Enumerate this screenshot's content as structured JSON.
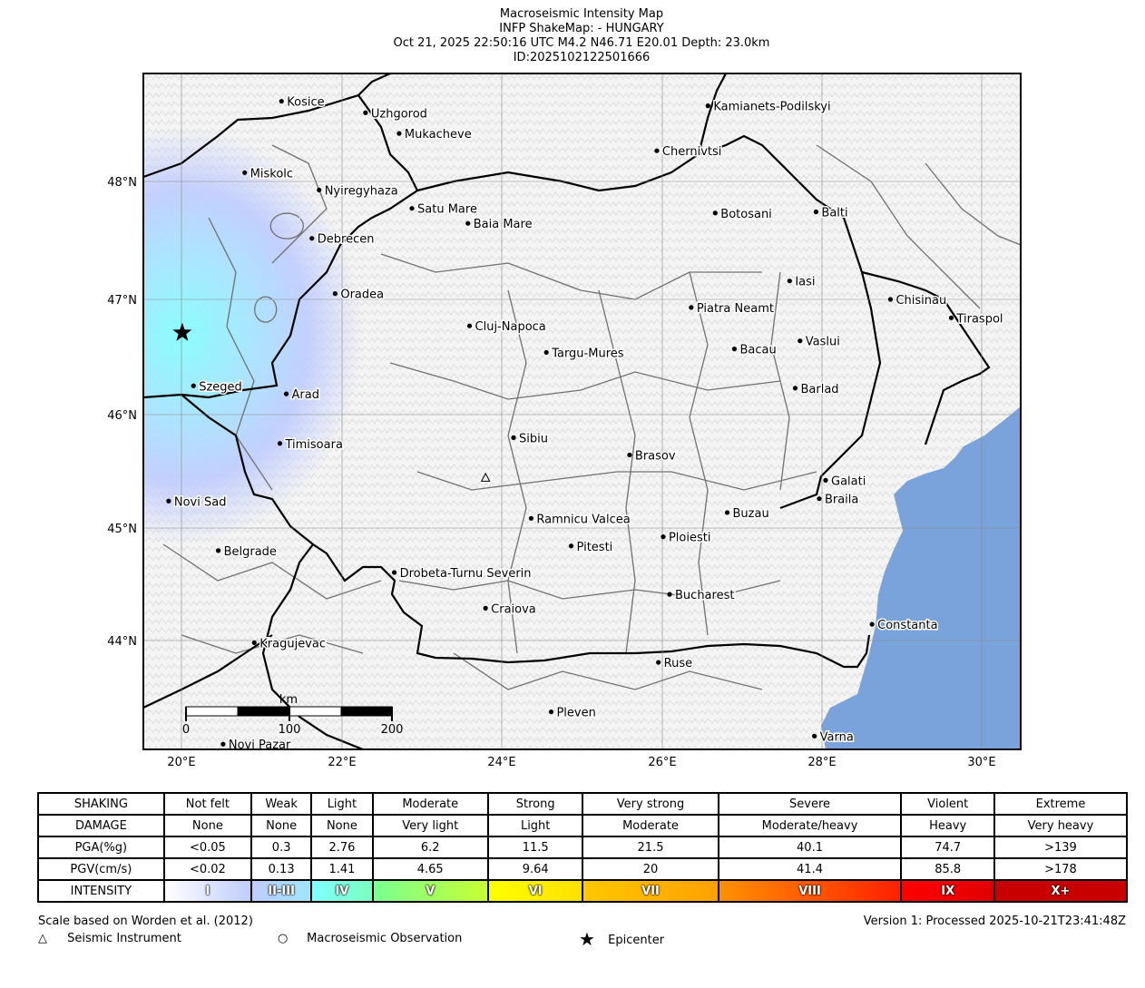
{
  "title": {
    "line1": "Macroseismic Intensity Map",
    "line2": "INFP ShakeMap: - HUNGARY",
    "line3": "Oct 21, 2025 22:50:16 UTC M4.2 N46.71 E20.01 Depth: 23.0km",
    "line4": "ID:2025102122501666"
  },
  "map": {
    "lon_ticks": [
      "20°E",
      "22°E",
      "24°E",
      "26°E",
      "28°E",
      "30°E"
    ],
    "lat_ticks": [
      "48°N",
      "47°N",
      "46°N",
      "45°N",
      "44°N"
    ],
    "cities": [
      {
        "name": "Kosice",
        "lon": 21.25,
        "lat": 48.72
      },
      {
        "name": "Uzhgorod",
        "lon": 22.3,
        "lat": 48.62
      },
      {
        "name": "Mukacheve",
        "lon": 22.72,
        "lat": 48.44
      },
      {
        "name": "Kamianets-Podilskyi",
        "lon": 26.58,
        "lat": 48.68
      },
      {
        "name": "Chernivtsi",
        "lon": 25.94,
        "lat": 48.29
      },
      {
        "name": "Miskolc",
        "lon": 20.79,
        "lat": 48.1
      },
      {
        "name": "Nyiregyhaza",
        "lon": 21.72,
        "lat": 47.95
      },
      {
        "name": "Satu Mare",
        "lon": 22.88,
        "lat": 47.79
      },
      {
        "name": "Baia Mare",
        "lon": 23.58,
        "lat": 47.66
      },
      {
        "name": "Botosani",
        "lon": 26.67,
        "lat": 47.75
      },
      {
        "name": "Balti",
        "lon": 27.93,
        "lat": 47.76
      },
      {
        "name": "Debrecen",
        "lon": 21.63,
        "lat": 47.53
      },
      {
        "name": "Iasi",
        "lon": 27.6,
        "lat": 47.16
      },
      {
        "name": "Oradea",
        "lon": 21.92,
        "lat": 47.05
      },
      {
        "name": "Chisinau",
        "lon": 28.86,
        "lat": 47.0
      },
      {
        "name": "Piatra Neamt",
        "lon": 26.37,
        "lat": 46.93
      },
      {
        "name": "Tiraspol",
        "lon": 29.62,
        "lat": 46.84
      },
      {
        "name": "Cluj-Napoca",
        "lon": 23.6,
        "lat": 46.77
      },
      {
        "name": "Vaslui",
        "lon": 27.73,
        "lat": 46.64
      },
      {
        "name": "Bacau",
        "lon": 26.91,
        "lat": 46.57
      },
      {
        "name": "Targu-Mures",
        "lon": 24.56,
        "lat": 46.54
      },
      {
        "name": "Szeged",
        "lon": 20.15,
        "lat": 46.25
      },
      {
        "name": "Barlad",
        "lon": 27.67,
        "lat": 46.23
      },
      {
        "name": "Arad",
        "lon": 21.31,
        "lat": 46.18
      },
      {
        "name": "Sibiu",
        "lon": 24.15,
        "lat": 45.8
      },
      {
        "name": "Timisoara",
        "lon": 21.23,
        "lat": 45.75
      },
      {
        "name": "Brasov",
        "lon": 25.6,
        "lat": 45.65
      },
      {
        "name": "Galati",
        "lon": 28.05,
        "lat": 45.43
      },
      {
        "name": "Braila",
        "lon": 27.97,
        "lat": 45.27
      },
      {
        "name": "Novi Sad",
        "lon": 19.84,
        "lat": 45.25
      },
      {
        "name": "Buzau",
        "lon": 26.82,
        "lat": 45.15
      },
      {
        "name": "Ramnicu Valcea",
        "lon": 24.37,
        "lat": 45.1
      },
      {
        "name": "Ploiesti",
        "lon": 26.02,
        "lat": 44.94
      },
      {
        "name": "Pitesti",
        "lon": 24.87,
        "lat": 44.86
      },
      {
        "name": "Belgrade",
        "lon": 20.46,
        "lat": 44.82
      },
      {
        "name": "Drobeta-Turnu Severin",
        "lon": 22.66,
        "lat": 44.63
      },
      {
        "name": "Bucharest",
        "lon": 26.1,
        "lat": 44.44
      },
      {
        "name": "Craiova",
        "lon": 23.8,
        "lat": 44.32
      },
      {
        "name": "Constanta",
        "lon": 28.63,
        "lat": 44.18
      },
      {
        "name": "Kragujevac",
        "lon": 20.91,
        "lat": 44.02
      },
      {
        "name": "Ruse",
        "lon": 25.96,
        "lat": 43.85
      },
      {
        "name": "Pleven",
        "lon": 24.62,
        "lat": 43.42
      },
      {
        "name": "Novi Pazar",
        "lon": 20.52,
        "lat": 43.14
      },
      {
        "name": "Varna",
        "lon": 27.91,
        "lat": 43.21
      }
    ],
    "epicenter": {
      "lon": 20.01,
      "lat": 46.71
    },
    "instrument": {
      "lon": 23.8,
      "lat": 45.45
    },
    "scale_bar": {
      "unit": "km",
      "labels": [
        "0",
        "100",
        "200"
      ]
    },
    "colors": {
      "sea": "#7BA3DB",
      "border": "#000000",
      "region": "#707070",
      "intensity_low": "#BFCCFF",
      "intensity_mid": "#A0E6FF",
      "intensity_high": "#80FFFF"
    }
  },
  "legend": {
    "rows": [
      {
        "header": "SHAKING",
        "values": [
          "Not felt",
          "Weak",
          "Light",
          "Moderate",
          "Strong",
          "Very strong",
          "Severe",
          "Violent",
          "Extreme"
        ]
      },
      {
        "header": "DAMAGE",
        "values": [
          "None",
          "None",
          "None",
          "Very light",
          "Light",
          "Moderate",
          "Moderate/heavy",
          "Heavy",
          "Very heavy"
        ]
      },
      {
        "header": "PGA(%g)",
        "values": [
          "<0.05",
          "0.3",
          "2.76",
          "6.2",
          "11.5",
          "21.5",
          "40.1",
          "74.7",
          ">139"
        ]
      },
      {
        "header": "PGV(cm/s)",
        "values": [
          "<0.02",
          "0.13",
          "1.41",
          "4.65",
          "9.64",
          "20",
          "41.4",
          "85.8",
          ">178"
        ]
      }
    ],
    "intensity_header": "INTENSITY",
    "intensity": [
      {
        "label": "I",
        "from": "#ffffff",
        "to": "#BFCCFF"
      },
      {
        "label": "II-III",
        "from": "#BFCCFF",
        "to": "#A0E6FF"
      },
      {
        "label": "IV",
        "from": "#80FFFF",
        "to": "#7AFFC0"
      },
      {
        "label": "V",
        "from": "#7AFF93",
        "to": "#C7FF30"
      },
      {
        "label": "VI",
        "from": "#FFFF00",
        "to": "#FFE000"
      },
      {
        "label": "VII",
        "from": "#FFC800",
        "to": "#FFA000"
      },
      {
        "label": "VIII",
        "from": "#FF9100",
        "to": "#FF2000"
      },
      {
        "label": "IX",
        "from": "#FF0000",
        "to": "#E00000"
      },
      {
        "label": "X+",
        "from": "#C80000",
        "to": "#C80000"
      }
    ]
  },
  "footer": {
    "scale_note": "Scale based on Worden et al. (2012)",
    "version": "Version 1: Processed 2025-10-21T23:41:48Z",
    "instrument_label": "Seismic Instrument",
    "observation_label": "Macroseismic Observation",
    "epicenter_label": "Epicenter"
  }
}
